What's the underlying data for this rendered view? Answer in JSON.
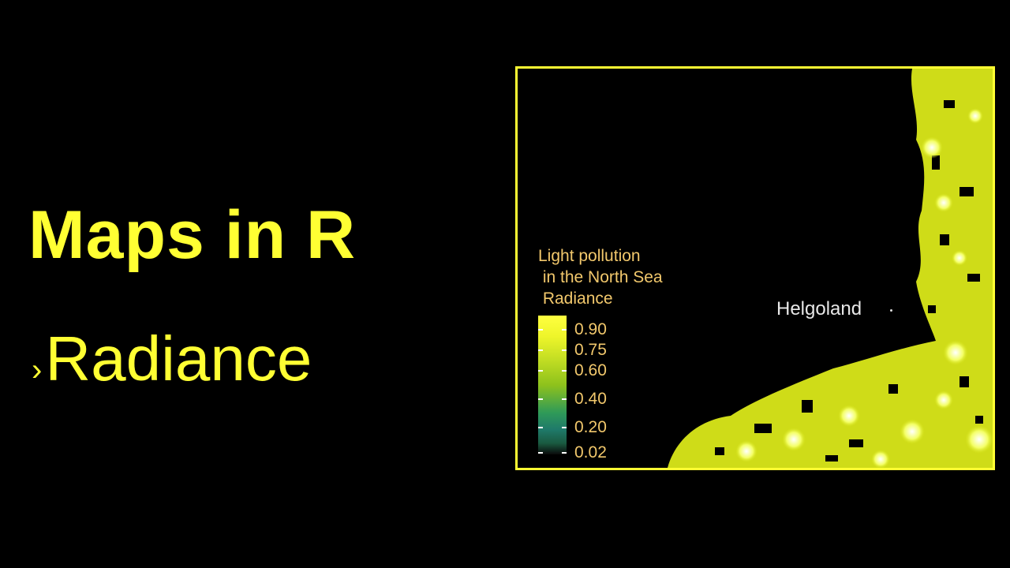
{
  "slide": {
    "title": "Maps in R",
    "subtitle_bullet": "›",
    "subtitle": "Radiance"
  },
  "map": {
    "legend_title": "Light pollution\n in the North Sea\n Radiance",
    "legend_ticks": [
      "0.90",
      "0.75",
      "0.60",
      "0.40",
      "0.20",
      "0.02"
    ],
    "place_label": "Helgoland",
    "colors": {
      "accent": "#ffff33",
      "legend_text": "#f2c86c",
      "land": "#d8e51a",
      "background": "#000000"
    }
  }
}
